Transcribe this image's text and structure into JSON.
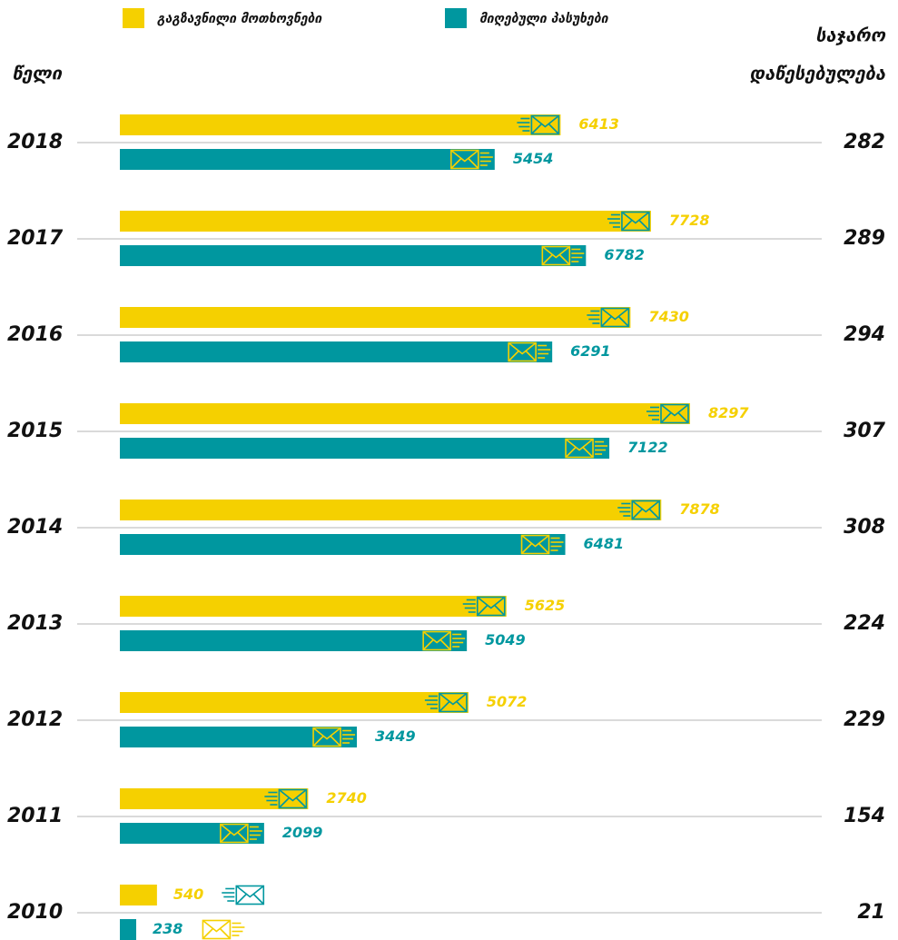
{
  "chart_data": {
    "type": "bar",
    "orientation": "horizontal",
    "y_axis_label": "წელი",
    "right_axis_label": [
      "საჯარო",
      "დაწესებულება"
    ],
    "categories": [
      "2018",
      "2017",
      "2016",
      "2015",
      "2014",
      "2013",
      "2012",
      "2011",
      "2010"
    ],
    "series": [
      {
        "name": "გაგზავნილი მოთხოვნები",
        "color": "#f5d000",
        "values": [
          6413,
          7728,
          7430,
          8297,
          7878,
          5625,
          5072,
          2740,
          540
        ]
      },
      {
        "name": "მიღებული პასუხები",
        "color": "#00979f",
        "values": [
          5454,
          6782,
          6291,
          7122,
          6481,
          5049,
          3449,
          2099,
          238
        ]
      }
    ],
    "right_values": [
      282,
      289,
      294,
      307,
      308,
      224,
      229,
      154,
      21
    ],
    "grid": true
  }
}
